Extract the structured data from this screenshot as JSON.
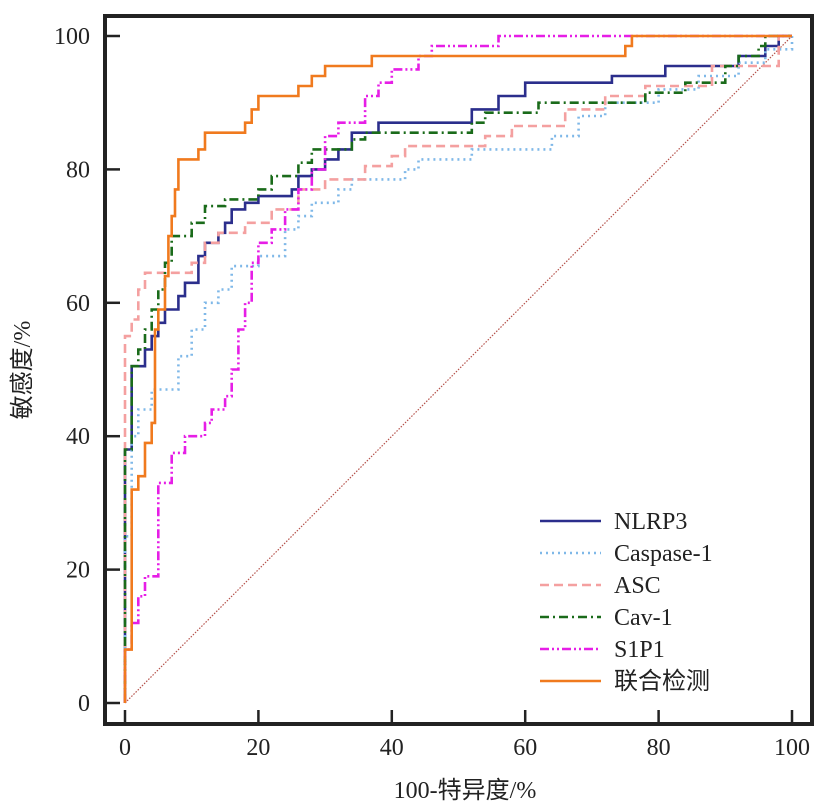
{
  "chart_data": {
    "type": "line",
    "title": "",
    "xlabel": "100-特异度/%",
    "ylabel": "敏感度/%",
    "xlim": [
      -3,
      103
    ],
    "ylim": [
      -3,
      103
    ],
    "xticks": [
      0,
      20,
      40,
      60,
      80,
      100
    ],
    "yticks": [
      0,
      20,
      40,
      60,
      80,
      100
    ],
    "grid": false,
    "legend_position": "bottom-right",
    "reference_line": {
      "name": "diagonal",
      "points": [
        [
          0,
          0
        ],
        [
          100,
          100
        ]
      ],
      "color": "#b5524b",
      "style": "dotted"
    },
    "series": [
      {
        "name": "NLRP3",
        "color": "#2b2e8c",
        "style": "solid",
        "points": [
          [
            0,
            0
          ],
          [
            0,
            38
          ],
          [
            1,
            38
          ],
          [
            1,
            50.5
          ],
          [
            3,
            50.5
          ],
          [
            3,
            53
          ],
          [
            4,
            53
          ],
          [
            4,
            55
          ],
          [
            5,
            55
          ],
          [
            5,
            57
          ],
          [
            6,
            57
          ],
          [
            6,
            59
          ],
          [
            8,
            59
          ],
          [
            8,
            61
          ],
          [
            9,
            61
          ],
          [
            9,
            63
          ],
          [
            11,
            63
          ],
          [
            11,
            67
          ],
          [
            12,
            67
          ],
          [
            12,
            69
          ],
          [
            14,
            69
          ],
          [
            14,
            70.5
          ],
          [
            15,
            70.5
          ],
          [
            15,
            72
          ],
          [
            16,
            72
          ],
          [
            16,
            74
          ],
          [
            18,
            74
          ],
          [
            18,
            75
          ],
          [
            20,
            75
          ],
          [
            20,
            76
          ],
          [
            25,
            76
          ],
          [
            25,
            77
          ],
          [
            26,
            77
          ],
          [
            26,
            79
          ],
          [
            28,
            79
          ],
          [
            28,
            80
          ],
          [
            30,
            80
          ],
          [
            30,
            81.5
          ],
          [
            32,
            81.5
          ],
          [
            32,
            83
          ],
          [
            34,
            83
          ],
          [
            34,
            85.5
          ],
          [
            38,
            85.5
          ],
          [
            38,
            87
          ],
          [
            52,
            87
          ],
          [
            52,
            89
          ],
          [
            56,
            89
          ],
          [
            56,
            91
          ],
          [
            60,
            91
          ],
          [
            60,
            93
          ],
          [
            73,
            93
          ],
          [
            73,
            94
          ],
          [
            81,
            94
          ],
          [
            81,
            95.5
          ],
          [
            92,
            95.5
          ],
          [
            92,
            97
          ],
          [
            96,
            97
          ],
          [
            96,
            98.5
          ],
          [
            98,
            98.5
          ],
          [
            98,
            100
          ],
          [
            100,
            100
          ]
        ]
      },
      {
        "name": "Caspase-1",
        "color": "#7fb8e8",
        "style": "dotted",
        "points": [
          [
            0,
            0
          ],
          [
            0,
            25
          ],
          [
            1,
            25
          ],
          [
            1,
            40
          ],
          [
            2,
            40
          ],
          [
            2,
            44
          ],
          [
            4,
            44
          ],
          [
            4,
            47
          ],
          [
            8,
            47
          ],
          [
            8,
            52
          ],
          [
            10,
            52
          ],
          [
            10,
            56
          ],
          [
            12,
            56
          ],
          [
            12,
            60
          ],
          [
            14,
            60
          ],
          [
            14,
            62
          ],
          [
            16,
            62
          ],
          [
            16,
            65.5
          ],
          [
            20,
            65.5
          ],
          [
            20,
            67
          ],
          [
            24,
            67
          ],
          [
            24,
            71
          ],
          [
            26,
            71
          ],
          [
            26,
            73
          ],
          [
            28,
            73
          ],
          [
            28,
            75
          ],
          [
            32,
            75
          ],
          [
            32,
            77
          ],
          [
            34,
            77
          ],
          [
            34,
            78.5
          ],
          [
            42,
            78.5
          ],
          [
            42,
            80
          ],
          [
            44,
            80
          ],
          [
            44,
            81.5
          ],
          [
            52,
            81.5
          ],
          [
            52,
            83
          ],
          [
            64,
            83
          ],
          [
            64,
            85
          ],
          [
            68,
            85
          ],
          [
            68,
            88
          ],
          [
            72,
            88
          ],
          [
            72,
            90
          ],
          [
            80,
            90
          ],
          [
            80,
            92
          ],
          [
            86,
            92
          ],
          [
            86,
            94
          ],
          [
            92,
            94
          ],
          [
            92,
            96
          ],
          [
            96,
            96
          ],
          [
            96,
            98
          ],
          [
            100,
            98
          ],
          [
            100,
            100
          ]
        ]
      },
      {
        "name": "ASC",
        "color": "#f4a0a0",
        "style": "dashed",
        "points": [
          [
            0,
            0
          ],
          [
            0,
            55
          ],
          [
            1,
            55
          ],
          [
            1,
            57.5
          ],
          [
            2,
            57.5
          ],
          [
            2,
            62
          ],
          [
            3,
            62
          ],
          [
            3,
            64.5
          ],
          [
            10,
            64.5
          ],
          [
            10,
            66
          ],
          [
            12,
            66
          ],
          [
            12,
            69
          ],
          [
            14,
            69
          ],
          [
            14,
            70.5
          ],
          [
            18,
            70.5
          ],
          [
            18,
            72
          ],
          [
            22,
            72
          ],
          [
            22,
            74
          ],
          [
            26,
            74
          ],
          [
            26,
            77
          ],
          [
            30,
            77
          ],
          [
            30,
            78.5
          ],
          [
            36,
            78.5
          ],
          [
            36,
            80.5
          ],
          [
            40,
            80.5
          ],
          [
            40,
            82
          ],
          [
            42,
            82
          ],
          [
            42,
            83.5
          ],
          [
            54,
            83.5
          ],
          [
            54,
            85
          ],
          [
            58,
            85
          ],
          [
            58,
            86.5
          ],
          [
            66,
            86.5
          ],
          [
            66,
            89
          ],
          [
            72,
            89
          ],
          [
            72,
            91
          ],
          [
            78,
            91
          ],
          [
            78,
            92.5
          ],
          [
            88,
            92.5
          ],
          [
            88,
            95.5
          ],
          [
            98,
            95.5
          ],
          [
            98,
            100
          ],
          [
            100,
            100
          ]
        ]
      },
      {
        "name": "Cav-1",
        "color": "#1a6b1a",
        "style": "dashdot",
        "points": [
          [
            0,
            0
          ],
          [
            0,
            38
          ],
          [
            1,
            38
          ],
          [
            1,
            50.5
          ],
          [
            2,
            50.5
          ],
          [
            2,
            53
          ],
          [
            3,
            53
          ],
          [
            3,
            56
          ],
          [
            4,
            56
          ],
          [
            4,
            59
          ],
          [
            5,
            59
          ],
          [
            5,
            62
          ],
          [
            6,
            62
          ],
          [
            6,
            66
          ],
          [
            7,
            66
          ],
          [
            7,
            70
          ],
          [
            10,
            70
          ],
          [
            10,
            72
          ],
          [
            12,
            72
          ],
          [
            12,
            74.5
          ],
          [
            15,
            74.5
          ],
          [
            15,
            75.5
          ],
          [
            20,
            75.5
          ],
          [
            20,
            77
          ],
          [
            22,
            77
          ],
          [
            22,
            79
          ],
          [
            26,
            79
          ],
          [
            26,
            81
          ],
          [
            28,
            81
          ],
          [
            28,
            83
          ],
          [
            34,
            83
          ],
          [
            34,
            84.5
          ],
          [
            36,
            84.5
          ],
          [
            36,
            85.5
          ],
          [
            52,
            85.5
          ],
          [
            52,
            87
          ],
          [
            54,
            87
          ],
          [
            54,
            88.5
          ],
          [
            62,
            88.5
          ],
          [
            62,
            90
          ],
          [
            78,
            90
          ],
          [
            78,
            91.5
          ],
          [
            84,
            91.5
          ],
          [
            84,
            93
          ],
          [
            90,
            93
          ],
          [
            90,
            95.5
          ],
          [
            92,
            95.5
          ],
          [
            92,
            97
          ],
          [
            95,
            97
          ],
          [
            95,
            98.5
          ],
          [
            96,
            98.5
          ],
          [
            96,
            100
          ],
          [
            100,
            100
          ]
        ]
      },
      {
        "name": "S1P1",
        "color": "#e61ee6",
        "style": "dashdotdot",
        "points": [
          [
            0,
            0
          ],
          [
            0,
            8
          ],
          [
            1,
            8
          ],
          [
            1,
            12
          ],
          [
            2,
            12
          ],
          [
            2,
            16
          ],
          [
            3,
            16
          ],
          [
            3,
            19
          ],
          [
            5,
            19
          ],
          [
            5,
            33
          ],
          [
            7,
            33
          ],
          [
            7,
            37.5
          ],
          [
            9,
            37.5
          ],
          [
            9,
            40
          ],
          [
            12,
            40
          ],
          [
            12,
            42
          ],
          [
            13,
            42
          ],
          [
            13,
            44
          ],
          [
            15,
            44
          ],
          [
            15,
            46
          ],
          [
            16,
            46
          ],
          [
            16,
            50
          ],
          [
            17,
            50
          ],
          [
            17,
            56
          ],
          [
            18,
            56
          ],
          [
            18,
            60
          ],
          [
            19,
            60
          ],
          [
            19,
            66
          ],
          [
            20,
            66
          ],
          [
            20,
            69
          ],
          [
            22,
            69
          ],
          [
            22,
            71
          ],
          [
            24,
            71
          ],
          [
            24,
            74
          ],
          [
            26,
            74
          ],
          [
            26,
            77
          ],
          [
            28,
            77
          ],
          [
            28,
            80
          ],
          [
            30,
            80
          ],
          [
            30,
            85
          ],
          [
            32,
            85
          ],
          [
            32,
            87
          ],
          [
            36,
            87
          ],
          [
            36,
            91
          ],
          [
            38,
            91
          ],
          [
            38,
            93
          ],
          [
            40,
            93
          ],
          [
            40,
            95
          ],
          [
            44,
            95
          ],
          [
            44,
            97
          ],
          [
            46,
            97
          ],
          [
            46,
            98.5
          ],
          [
            56,
            98.5
          ],
          [
            56,
            100
          ],
          [
            100,
            100
          ]
        ]
      },
      {
        "name": "联合检测",
        "color": "#f07a1e",
        "style": "solid",
        "points": [
          [
            0,
            0
          ],
          [
            0,
            8
          ],
          [
            1,
            8
          ],
          [
            1,
            32
          ],
          [
            2,
            32
          ],
          [
            2,
            34
          ],
          [
            3,
            34
          ],
          [
            3,
            39
          ],
          [
            4,
            39
          ],
          [
            4,
            42
          ],
          [
            4.5,
            42
          ],
          [
            4.5,
            56
          ],
          [
            5,
            56
          ],
          [
            5,
            59
          ],
          [
            6,
            59
          ],
          [
            6,
            64
          ],
          [
            6.5,
            64
          ],
          [
            6.5,
            70
          ],
          [
            7,
            70
          ],
          [
            7,
            73
          ],
          [
            7.5,
            73
          ],
          [
            7.5,
            77
          ],
          [
            8,
            77
          ],
          [
            8,
            81.5
          ],
          [
            11,
            81.5
          ],
          [
            11,
            83
          ],
          [
            12,
            83
          ],
          [
            12,
            85.5
          ],
          [
            18,
            85.5
          ],
          [
            18,
            87
          ],
          [
            19,
            87
          ],
          [
            19,
            89
          ],
          [
            20,
            89
          ],
          [
            20,
            91
          ],
          [
            26,
            91
          ],
          [
            26,
            92.5
          ],
          [
            28,
            92.5
          ],
          [
            28,
            94
          ],
          [
            30,
            94
          ],
          [
            30,
            95.5
          ],
          [
            37,
            95.5
          ],
          [
            37,
            97
          ],
          [
            75,
            97
          ],
          [
            75,
            98.5
          ],
          [
            76,
            98.5
          ],
          [
            76,
            100
          ],
          [
            100,
            100
          ]
        ]
      }
    ]
  }
}
